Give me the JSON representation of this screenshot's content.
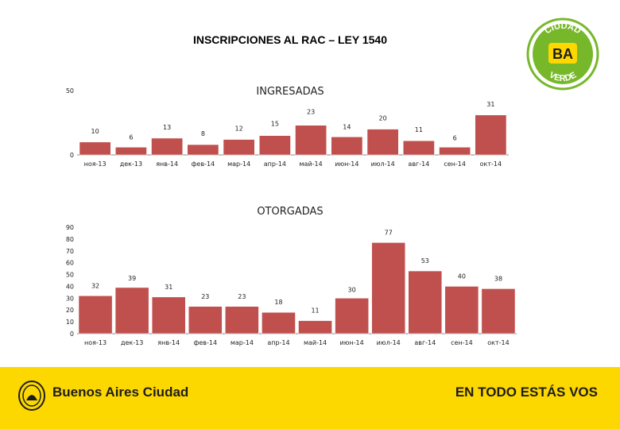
{
  "slide": {
    "title": "INSCRIPCIONES  AL RAC – LEY 1540"
  },
  "badge": {
    "top_text": "CIUDAD",
    "center_text": "BA",
    "bottom_text": "VERDE"
  },
  "footer": {
    "brand": "Buenos Aires Ciudad",
    "slogan": "EN TODO ESTÁS VOS",
    "background_color": "#fcd700"
  },
  "chart_data": [
    {
      "type": "bar",
      "title": "INGRESADAS",
      "categories": [
        "ноя-13",
        "дек-13",
        "янв-14",
        "фев-14",
        "мар-14",
        "апр-14",
        "май-14",
        "июн-14",
        "июл-14",
        "авг-14",
        "сен-14",
        "окт-14"
      ],
      "values": [
        10,
        6,
        13,
        8,
        12,
        15,
        23,
        14,
        20,
        11,
        6,
        31
      ],
      "y_ticks": [
        0,
        50
      ],
      "ylim": [
        0,
        50
      ],
      "xlabel": "",
      "ylabel": "",
      "grid": false,
      "bar_color": "#c0504d"
    },
    {
      "type": "bar",
      "title": "OTORGADAS",
      "categories": [
        "ноя-13",
        "дек-13",
        "янв-14",
        "фев-14",
        "мар-14",
        "апр-14",
        "май-14",
        "июн-14",
        "июл-14",
        "авг-14",
        "сен-14",
        "окт-14"
      ],
      "values": [
        32,
        39,
        31,
        23,
        23,
        18,
        11,
        30,
        77,
        53,
        40,
        38
      ],
      "y_ticks": [
        0,
        10,
        20,
        30,
        40,
        50,
        60,
        70,
        80,
        90
      ],
      "ylim": [
        0,
        90
      ],
      "xlabel": "",
      "ylabel": "",
      "grid": false,
      "bar_color": "#c0504d"
    }
  ]
}
